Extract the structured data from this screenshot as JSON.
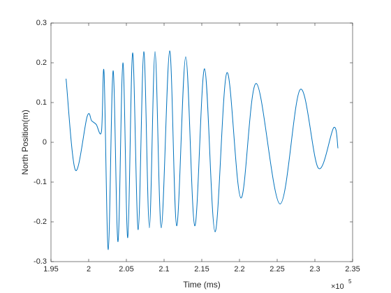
{
  "chart_data": {
    "type": "line",
    "x_label": "Time (ms)",
    "y_label": "North Position(m)",
    "x_multiplier": "×10",
    "x_multiplier_exp": "5",
    "x": [
      197000,
      198240,
      199800,
      200400,
      201000,
      201700,
      202040,
      202600,
      203240,
      203890,
      204540,
      205180,
      205830,
      206570,
      207310,
      208050,
      208800,
      209630,
      210740,
      211670,
      212870,
      214070,
      215370,
      216760,
      218330,
      220190,
      222220,
      225370,
      228060,
      230460,
      232500,
      233060
    ],
    "series": [
      {
        "name": "North Position",
        "color": "#0072bd",
        "values": [
          0.16,
          -0.07,
          0.065,
          0.054,
          0.045,
          0.028,
          0.175,
          -0.27,
          0.18,
          -0.25,
          0.2,
          -0.24,
          0.225,
          -0.22,
          0.228,
          -0.215,
          0.228,
          -0.215,
          0.23,
          -0.21,
          0.215,
          -0.21,
          0.185,
          -0.225,
          0.175,
          -0.14,
          0.148,
          -0.155,
          0.133,
          -0.065,
          0.037,
          -0.015
        ]
      }
    ],
    "xlim": [
      195000,
      235000
    ],
    "xticks": [
      {
        "value": 195000,
        "label": "1.95"
      },
      {
        "value": 200000,
        "label": "2"
      },
      {
        "value": 205000,
        "label": "2.05"
      },
      {
        "value": 210000,
        "label": "2.1"
      },
      {
        "value": 215000,
        "label": "2.15"
      },
      {
        "value": 220000,
        "label": "2.2"
      },
      {
        "value": 225000,
        "label": "2.25"
      },
      {
        "value": 230000,
        "label": "2.3"
      },
      {
        "value": 235000,
        "label": "2.35"
      }
    ],
    "ylim": [
      -0.3,
      0.3
    ],
    "yticks": [
      -0.3,
      -0.2,
      -0.1,
      0,
      0.1,
      0.2,
      0.3
    ],
    "grid": false
  }
}
